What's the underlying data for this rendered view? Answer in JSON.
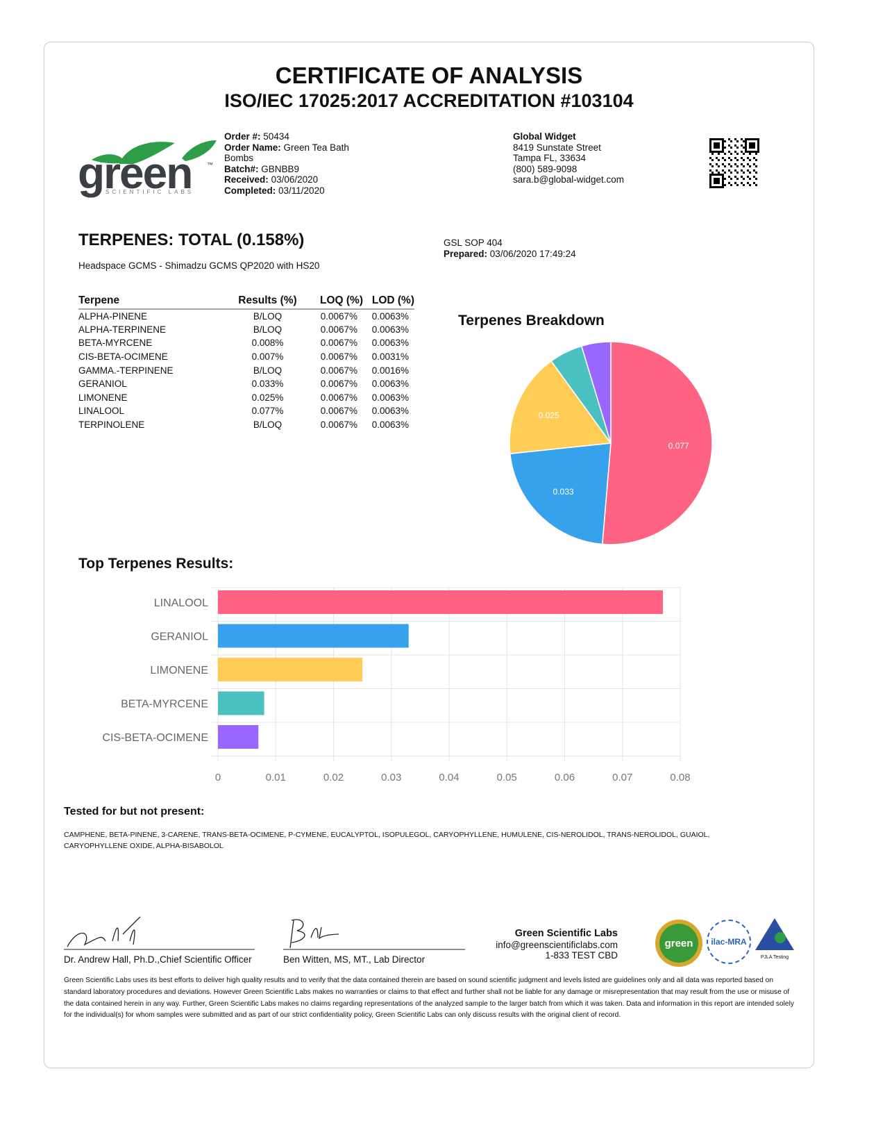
{
  "header": {
    "title": "CERTIFICATE OF ANALYSIS",
    "subtitle": "ISO/IEC 17025:2017 ACCREDITATION #103104"
  },
  "logo": {
    "text": "green",
    "tagline": "SCIENTIFIC LABS",
    "tm": "™"
  },
  "order": {
    "order_no_label": "Order #:",
    "order_no": "50434",
    "order_name_label": "Order Name:",
    "order_name": "Green Tea Bath Bombs",
    "batch_label": "Batch#:",
    "batch": "GBNBB9",
    "received_label": "Received:",
    "received": "03/06/2020",
    "completed_label": "Completed:",
    "completed": "03/11/2020"
  },
  "client": {
    "name": "Global Widget",
    "street": "8419 Sunstate Street",
    "city": "Tampa FL, 33634",
    "phone": "(800) 589-9098",
    "email": "sara.b@global-widget.com"
  },
  "section": {
    "title": "TERPENES: TOTAL (0.158%)",
    "method": "Headspace GCMS - Shimadzu GCMS QP2020 with HS20",
    "sop": "GSL SOP 404",
    "prepared_label": "Prepared:",
    "prepared": "03/06/2020 17:49:24"
  },
  "table": {
    "headers": [
      "Terpene",
      "Results (%)",
      "LOQ (%)",
      "LOD (%)"
    ],
    "rows": [
      [
        "ALPHA-PINENE",
        "B/LOQ",
        "0.0067%",
        "0.0063%"
      ],
      [
        "ALPHA-TERPINENE",
        "B/LOQ",
        "0.0067%",
        "0.0063%"
      ],
      [
        "BETA-MYRCENE",
        "0.008%",
        "0.0067%",
        "0.0063%"
      ],
      [
        "CIS-BETA-OCIMENE",
        "0.007%",
        "0.0067%",
        "0.0031%"
      ],
      [
        "GAMMA.-TERPINENE",
        "B/LOQ",
        "0.0067%",
        "0.0016%"
      ],
      [
        "GERANIOL",
        "0.033%",
        "0.0067%",
        "0.0063%"
      ],
      [
        "LIMONENE",
        "0.025%",
        "0.0067%",
        "0.0063%"
      ],
      [
        "LINALOOL",
        "0.077%",
        "0.0067%",
        "0.0063%"
      ],
      [
        "TERPINOLENE",
        "B/LOQ",
        "0.0067%",
        "0.0063%"
      ]
    ]
  },
  "chart_data": [
    {
      "type": "pie",
      "title": "Terpenes Breakdown",
      "categories": [
        "LINALOOL",
        "GERANIOL",
        "LIMONENE",
        "BETA-MYRCENE",
        "CIS-BETA-OCIMENE"
      ],
      "values": [
        0.077,
        0.033,
        0.025,
        0.008,
        0.007
      ],
      "data_labels": [
        "0.077",
        "0.033",
        "0.025",
        "",
        ""
      ],
      "colors": [
        "#ff6384",
        "#36a2eb",
        "#ffcd56",
        "#4bc0c0",
        "#9966ff"
      ]
    },
    {
      "type": "bar",
      "orientation": "horizontal",
      "title": "Top Terpenes Results:",
      "categories": [
        "LINALOOL",
        "GERANIOL",
        "LIMONENE",
        "BETA-MYRCENE",
        "CIS-BETA-OCIMENE"
      ],
      "values": [
        0.077,
        0.033,
        0.025,
        0.008,
        0.007
      ],
      "xlim": [
        0,
        0.08
      ],
      "xticks": [
        "0",
        "0.01",
        "0.02",
        "0.03",
        "0.04",
        "0.05",
        "0.06",
        "0.07",
        "0.08"
      ],
      "grid": true,
      "colors": [
        "#ff6384",
        "#36a2eb",
        "#ffcd56",
        "#4bc0c0",
        "#9966ff"
      ]
    }
  ],
  "not_present": {
    "title": "Tested for but not present:",
    "list": "CAMPHENE, BETA-PINENE, 3-CARENE, TRANS-BETA-OCIMENE, P-CYMENE, EUCALYPTOL, ISOPULEGOL, CARYOPHYLLENE, HUMULENE, CIS-NEROLIDOL, TRANS-NEROLIDOL, GUAIOL, CARYOPHYLLENE OXIDE, ALPHA-BISABOLOL"
  },
  "signatures": [
    {
      "name": "Dr. Andrew Hall, Ph.D.,Chief Scientific Officer"
    },
    {
      "name": "Ben Witten, MS, MT., Lab Director"
    }
  ],
  "lab": {
    "name": "Green Scientific Labs",
    "email": "info@greenscientificlabs.com",
    "phone": "1-833 TEST CBD"
  },
  "badges": {
    "green": "green",
    "ilac": "ilac-MRA",
    "pjla": "PJLA Testing"
  },
  "disclaimer": "Green Scientific Labs uses its best efforts to deliver high quality results and to verify that the data contained therein are based on sound scientific judgment and levels listed are guidelines only and all data was reported based on standard laboratory procedures and deviations. However Green Scientific Labs makes no warranties or claims to that effect and further shall not be liable for any damage or misrepresentation that may result from the use or misuse of the data contained herein in any way. Further, Green Scientific Labs makes no claims regarding representations of the analyzed sample to the larger batch from which it was taken. Data and information in this report are intended solely for the individual(s) for whom samples were submitted and as part of our strict confidentiality policy, Green Scientific Labs can only discuss results with the original client of record."
}
